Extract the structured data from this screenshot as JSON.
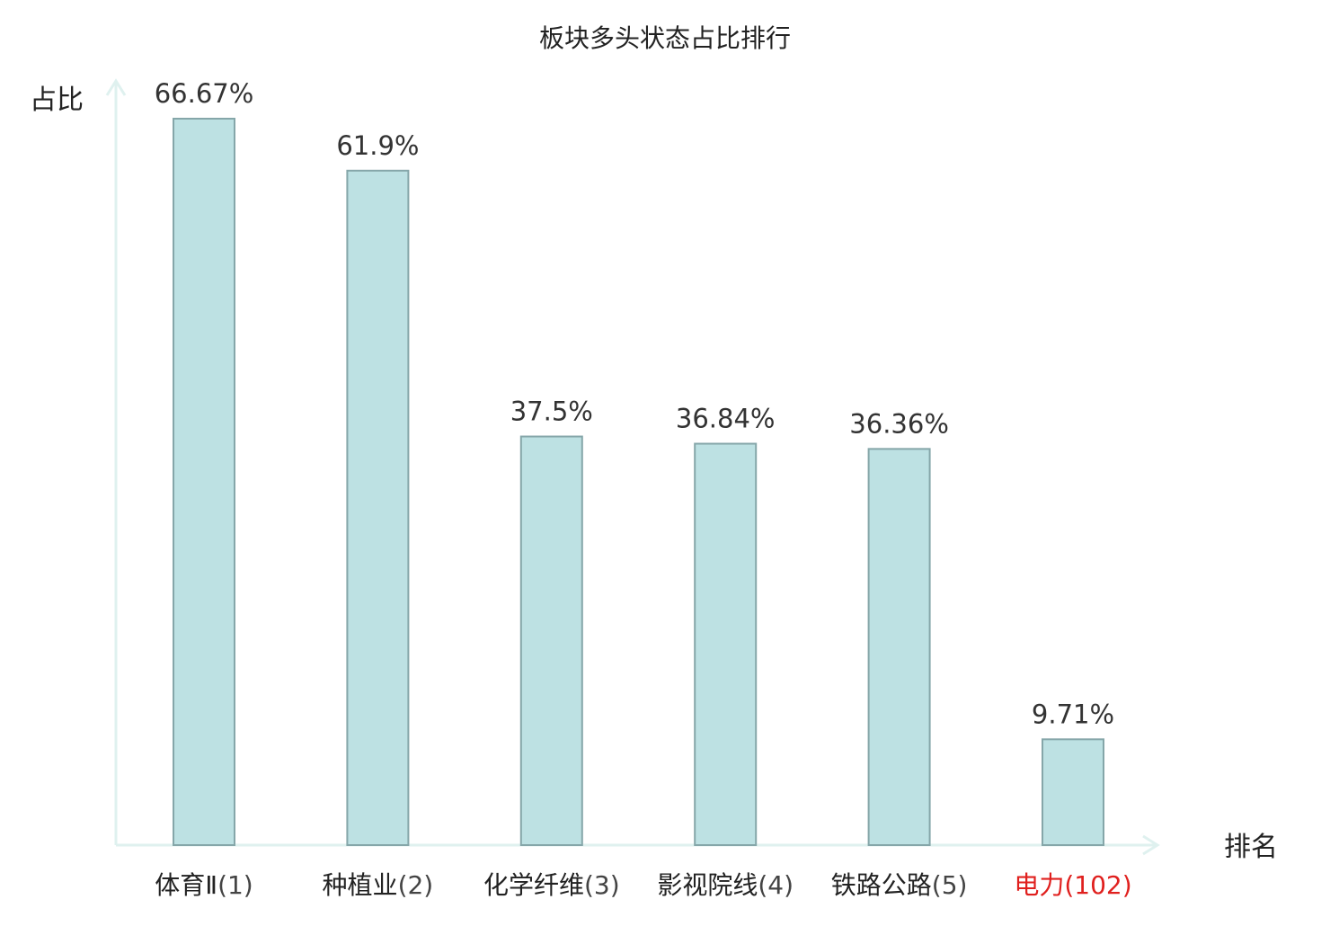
{
  "chart_data": {
    "type": "bar",
    "title": "板块多头状态占比排行",
    "ylabel": "占比",
    "xlabel": "排名",
    "ylim": [
      0,
      70
    ],
    "categories": [
      {
        "name": "体育Ⅱ",
        "rank": "(1)",
        "highlight": false
      },
      {
        "name": "种植业",
        "rank": "(2)",
        "highlight": false
      },
      {
        "name": "化学纤维",
        "rank": "(3)",
        "highlight": false
      },
      {
        "name": "影视院线",
        "rank": "(4)",
        "highlight": false
      },
      {
        "name": "铁路公路",
        "rank": "(5)",
        "highlight": false
      },
      {
        "name": "电力",
        "rank": "(102)",
        "highlight": true
      }
    ],
    "values": [
      66.67,
      61.9,
      37.5,
      36.84,
      36.36,
      9.71
    ],
    "value_labels": [
      "66.67%",
      "61.9%",
      "37.5%",
      "36.84%",
      "36.36%",
      "9.71%"
    ],
    "grid": false,
    "legend": "none"
  },
  "colors": {
    "bar_fill": "#bde1e3",
    "bar_stroke": "#85a6a9",
    "axis": "#dff1ef",
    "text": "#222222",
    "rank_text": "#444444",
    "highlight": "#e0201e"
  }
}
